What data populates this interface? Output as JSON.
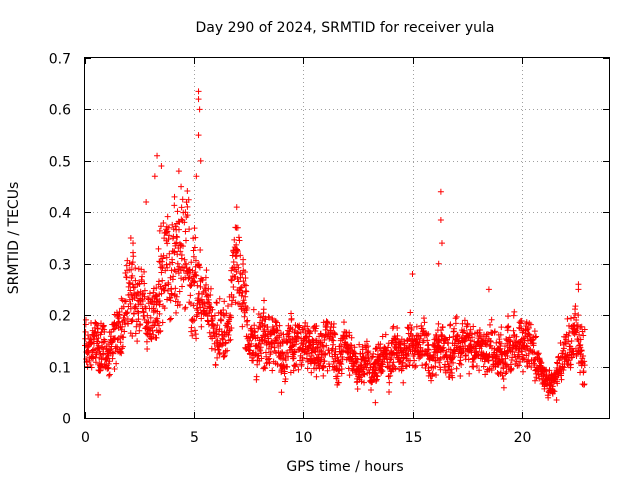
{
  "chart_data": {
    "type": "scatter",
    "title": "Day 290 of 2024, SRMTID for receiver yula",
    "xlabel": "GPS time / hours",
    "ylabel": "SRMTID / TECUs",
    "xlim": [
      0,
      24
    ],
    "ylim": [
      0,
      0.7
    ],
    "xticks": [
      0,
      5,
      10,
      15,
      20
    ],
    "yticks": [
      0,
      0.1,
      0.2,
      0.3,
      0.4,
      0.5,
      0.6,
      0.7
    ],
    "xtick_labels": [
      "0",
      "5",
      "10",
      "15",
      "20"
    ],
    "ytick_labels": [
      "0",
      "0.1",
      "0.2",
      "0.3",
      "0.4",
      "0.5",
      "0.6",
      "0.7"
    ],
    "grid": true,
    "marker": "plus",
    "color": "#ff0000",
    "trend_profile": [
      [
        0.0,
        0.15
      ],
      [
        0.5,
        0.14
      ],
      [
        1.0,
        0.13
      ],
      [
        1.5,
        0.15
      ],
      [
        2.0,
        0.24
      ],
      [
        2.5,
        0.22
      ],
      [
        3.0,
        0.2
      ],
      [
        3.5,
        0.28
      ],
      [
        4.0,
        0.3
      ],
      [
        4.5,
        0.33
      ],
      [
        5.0,
        0.28
      ],
      [
        5.5,
        0.22
      ],
      [
        6.0,
        0.18
      ],
      [
        6.5,
        0.17
      ],
      [
        7.0,
        0.3
      ],
      [
        7.5,
        0.16
      ],
      [
        8.0,
        0.15
      ],
      [
        9.0,
        0.14
      ],
      [
        10.0,
        0.13
      ],
      [
        11.0,
        0.14
      ],
      [
        12.0,
        0.13
      ],
      [
        13.0,
        0.1
      ],
      [
        14.0,
        0.13
      ],
      [
        15.0,
        0.14
      ],
      [
        16.0,
        0.12
      ],
      [
        17.0,
        0.14
      ],
      [
        18.0,
        0.13
      ],
      [
        19.0,
        0.13
      ],
      [
        20.0,
        0.14
      ],
      [
        20.5,
        0.14
      ],
      [
        21.0,
        0.08
      ],
      [
        21.5,
        0.07
      ],
      [
        22.0,
        0.14
      ],
      [
        22.5,
        0.16
      ],
      [
        22.9,
        0.13
      ]
    ],
    "notable_points": [
      [
        5.2,
        0.635
      ],
      [
        5.2,
        0.62
      ],
      [
        5.25,
        0.6
      ],
      [
        5.2,
        0.55
      ],
      [
        5.3,
        0.5
      ],
      [
        5.1,
        0.47
      ],
      [
        3.3,
        0.51
      ],
      [
        3.5,
        0.49
      ],
      [
        3.2,
        0.47
      ],
      [
        4.3,
        0.48
      ],
      [
        4.4,
        0.45
      ],
      [
        4.1,
        0.43
      ],
      [
        4.6,
        0.4
      ],
      [
        2.8,
        0.42
      ],
      [
        6.95,
        0.41
      ],
      [
        7.0,
        0.37
      ],
      [
        16.3,
        0.44
      ],
      [
        16.3,
        0.385
      ],
      [
        16.35,
        0.34
      ],
      [
        16.2,
        0.3
      ],
      [
        15.0,
        0.28
      ],
      [
        13.3,
        0.03
      ],
      [
        22.6,
        0.26
      ],
      [
        22.6,
        0.25
      ],
      [
        21.6,
        0.035
      ],
      [
        0.6,
        0.045
      ],
      [
        9.0,
        0.05
      ],
      [
        18.5,
        0.25
      ],
      [
        2.1,
        0.35
      ],
      [
        2.2,
        0.34
      ]
    ],
    "points_per_hour": 80,
    "x_end": 22.9
  }
}
